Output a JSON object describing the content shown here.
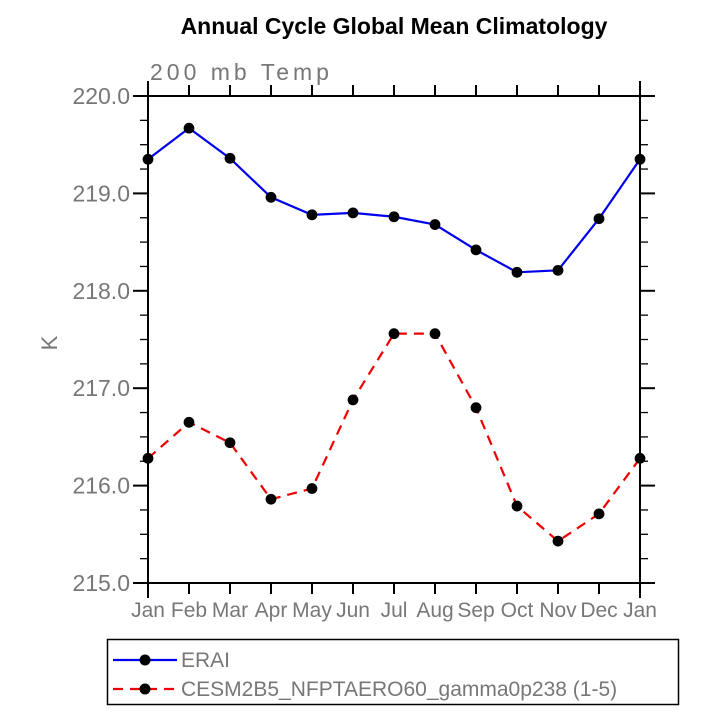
{
  "colors": {
    "background": "#ffffff",
    "axis": "#000000",
    "text_gray": "#777777",
    "title_black": "#000000",
    "marker": "#000000",
    "erai_blue": "#0000ee",
    "cesm_red": "#ee0000"
  },
  "chart_data": {
    "type": "line",
    "title": "Annual Cycle Global Mean Climatology",
    "subtitle": "200 mb Temp",
    "ylabel": "K",
    "xlabel": "",
    "x_categories": [
      "Jan",
      "Feb",
      "Mar",
      "Apr",
      "May",
      "Jun",
      "Jul",
      "Aug",
      "Sep",
      "Oct",
      "Nov",
      "Dec",
      "Jan"
    ],
    "ylim": [
      215.0,
      220.0
    ],
    "ytick_labels": [
      "215.0",
      "216.0",
      "217.0",
      "218.0",
      "219.0",
      "220.0"
    ],
    "ytick_values": [
      215.0,
      216.0,
      217.0,
      218.0,
      219.0,
      220.0
    ],
    "y_minor_interval": 0.25,
    "grid": false,
    "legend_position": "below-left",
    "frame": "box-with-outward-ticks",
    "series": [
      {
        "name": "ERAI",
        "color": "#0000ee",
        "line_style": "solid",
        "marker": "filled-circle",
        "marker_color": "#000000",
        "values": [
          219.35,
          219.67,
          219.36,
          218.96,
          218.78,
          218.8,
          218.76,
          218.68,
          218.42,
          218.19,
          218.21,
          218.74,
          219.35
        ]
      },
      {
        "name": "CESM2B5_NFPTAERO60_gamma0p238 (1-5)",
        "color": "#ee0000",
        "line_style": "dashed",
        "marker": "filled-circle",
        "marker_color": "#000000",
        "values": [
          216.28,
          216.65,
          216.44,
          215.86,
          215.97,
          216.88,
          217.56,
          217.56,
          216.8,
          215.79,
          215.43,
          215.71,
          216.28
        ]
      }
    ]
  }
}
